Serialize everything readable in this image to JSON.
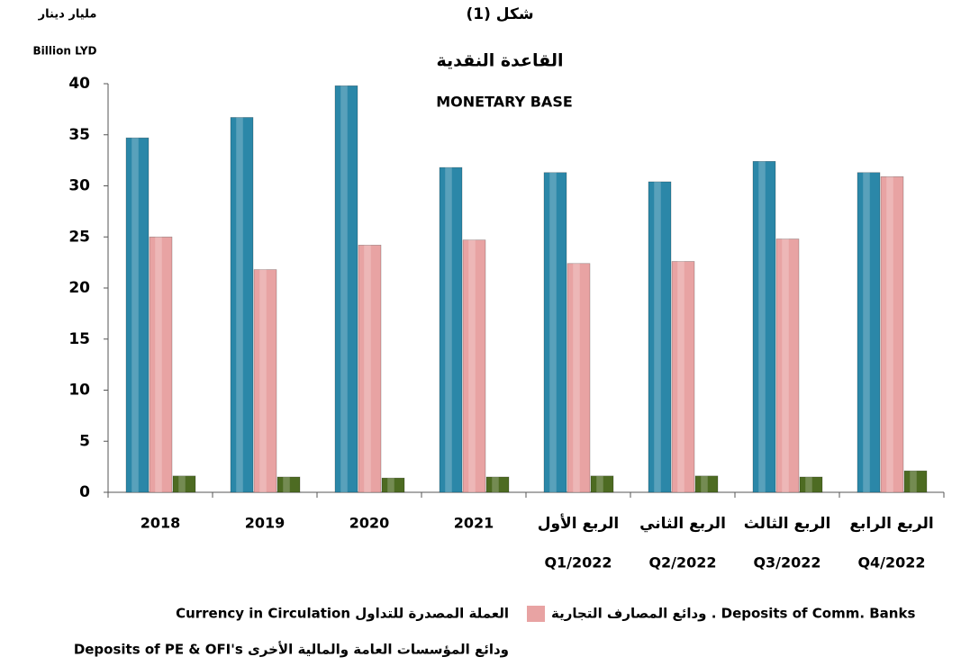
{
  "chart_data": {
    "type": "bar",
    "title": "شكل (1)",
    "subtitle": "القاعدة النقدية",
    "subtitle_en": "MONETARY BASE",
    "y_label": "مليار دينار",
    "y_label_en": "Billion LYD",
    "categories": [
      "2018",
      "2019",
      "2020",
      "2021",
      [
        "الربع الأول",
        "Q1/2022"
      ],
      [
        "الربع الثاني",
        "Q2/2022"
      ],
      [
        "الربع الثالث",
        "Q3/2022"
      ],
      [
        "الربع الرابع",
        "Q4/2022"
      ]
    ],
    "series": [
      {
        "name": "العملة المصدرة للتداول Currency in Circulation",
        "color": "#2b87a8",
        "values": [
          34.7,
          36.7,
          39.8,
          31.8,
          31.3,
          30.4,
          32.4,
          31.3
        ]
      },
      {
        "name": "ودائع المصارف التجارية . Deposits of Comm. Banks",
        "color": "#e8a3a3",
        "values": [
          25.0,
          21.8,
          24.2,
          24.7,
          22.4,
          22.6,
          24.8,
          30.9
        ]
      },
      {
        "name": "ودائع المؤسسات العامة والمالية الأخرى Deposits of PE & OFI's",
        "color": "#4d6b22",
        "values": [
          1.6,
          1.5,
          1.4,
          1.5,
          1.6,
          1.6,
          1.5,
          2.1
        ]
      }
    ],
    "ylim": [
      0,
      40
    ],
    "yticks": [
      0,
      5,
      10,
      15,
      20,
      25,
      30,
      35,
      40
    ],
    "grid": false
  }
}
